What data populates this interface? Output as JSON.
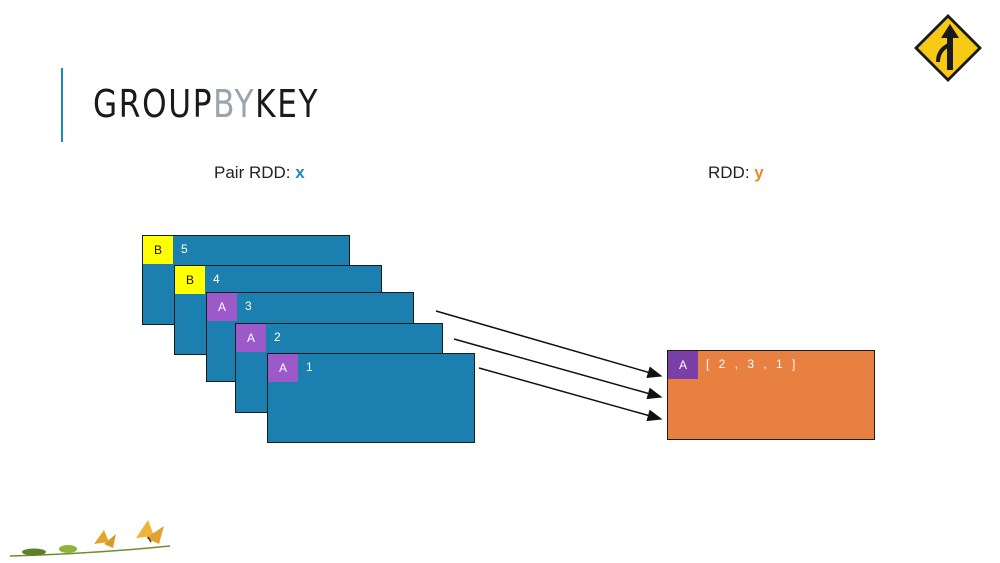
{
  "slide": {
    "title_parts": [
      "GROUP",
      "BY",
      "KEY"
    ],
    "caption_x": {
      "prefix": "Pair RDD: ",
      "var": "x"
    },
    "caption_y": {
      "prefix": "RDD: ",
      "var": "y"
    }
  },
  "input_pairs": [
    {
      "key": "B",
      "value": "5"
    },
    {
      "key": "B",
      "value": "4"
    },
    {
      "key": "A",
      "value": "3"
    },
    {
      "key": "A",
      "value": "2"
    },
    {
      "key": "A",
      "value": "1"
    }
  ],
  "output_pair": {
    "key": "A",
    "value": "[ 2 , 3 , 1 ]"
  },
  "colors": {
    "partition": "#1b7fb0",
    "key_b": "#ffff00",
    "key_a": "#9b59c9",
    "output": "#e78040",
    "accent_blue": "#1a8ac0",
    "accent_orange": "#e88a2e"
  },
  "icons": [
    "merge-sign-icon",
    "butterfly-lifecycle-icon"
  ]
}
